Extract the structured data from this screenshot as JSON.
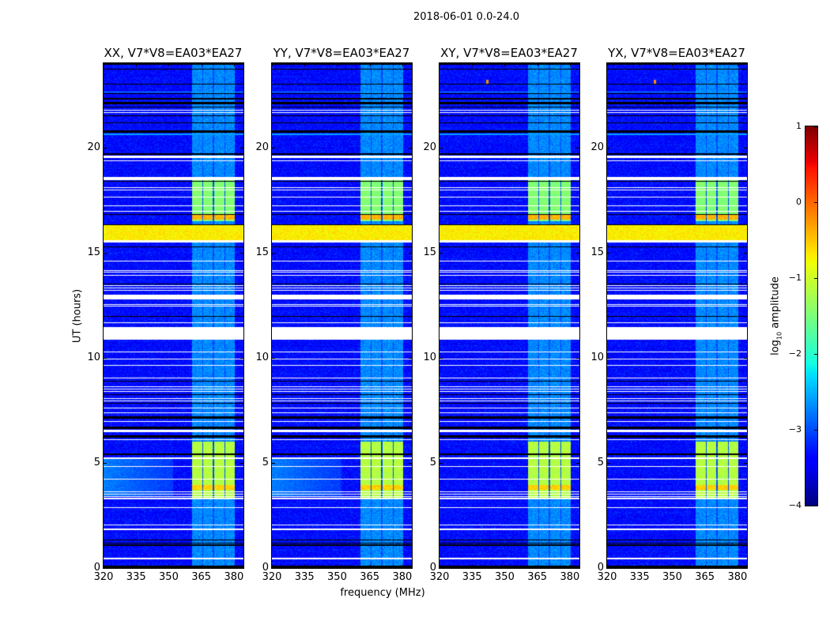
{
  "chart_data": {
    "type": "heatmap",
    "title": "2018-06-01 0.0-24.0",
    "xlabel": "frequency (MHz)",
    "ylabel": "UT (hours)",
    "xlim": [
      320,
      384.4
    ],
    "ylim": [
      0,
      24
    ],
    "xticks": [
      "320",
      "335",
      "350",
      "365",
      "380"
    ],
    "xtick_values": [
      320,
      335,
      350,
      365,
      380
    ],
    "yticks": [
      "0",
      "5",
      "10",
      "15",
      "20"
    ],
    "ytick_values": [
      0,
      5,
      10,
      15,
      20
    ],
    "colormap": "jet",
    "colorbar": {
      "label_main": "log",
      "label_sub": "10",
      "label_rest": " amplitude",
      "range": [
        -4,
        1
      ],
      "ticks": [
        "1",
        "0",
        "−1",
        "−2",
        "−3",
        "−4"
      ],
      "tick_values": [
        1,
        0,
        -1,
        -2,
        -3,
        -4
      ]
    },
    "panels": [
      {
        "title": "XX, V7*V8=EA03*EA27",
        "low_freq_haze": true,
        "spur": false
      },
      {
        "title": "YY, V7*V8=EA03*EA27",
        "low_freq_haze": true,
        "spur": false
      },
      {
        "title": "XY, V7*V8=EA03*EA27",
        "low_freq_haze": false,
        "spur": true
      },
      {
        "title": "YX, V7*V8=EA03*EA27",
        "low_freq_haze": false,
        "spur": true
      }
    ],
    "background_log_amplitude": -3.35,
    "subbands_mhz": [
      [
        360.8,
        365.3
      ],
      [
        365.9,
        370.3
      ],
      [
        370.9,
        375.5
      ],
      [
        376.0,
        380.4
      ]
    ],
    "subband_base_log_amplitude": -2.7,
    "rfi_events": [
      {
        "hours": [
          15.6,
          16.3
        ],
        "freq": "all",
        "log_amplitude": -0.7
      },
      {
        "hours": [
          16.5,
          18.6
        ],
        "freq": "subbands",
        "log_amplitude": -1.45
      },
      {
        "hours": [
          16.55,
          16.8
        ],
        "freq": "subbands",
        "log_amplitude": -0.4
      },
      {
        "hours": [
          3.3,
          6.0
        ],
        "freq": "subbands",
        "log_amplitude": -1.15
      },
      {
        "hours": [
          3.7,
          3.95
        ],
        "freq": "subbands",
        "log_amplitude": -0.55
      }
    ],
    "flagged_white_hours": [
      [
        21.8,
        21.76
      ],
      [
        21.67,
        21.63
      ],
      [
        19.62,
        19.48
      ],
      [
        19.38,
        19.34
      ],
      [
        18.6,
        18.44
      ],
      [
        18.09,
        18.05
      ],
      [
        17.99,
        17.95
      ],
      [
        17.66,
        17.62
      ],
      [
        17.23,
        17.19
      ],
      [
        16.99,
        16.95
      ],
      [
        15.6,
        15.47
      ],
      [
        14.62,
        14.58
      ],
      [
        14.17,
        14.13
      ],
      [
        14.07,
        14.03
      ],
      [
        13.95,
        13.91
      ],
      [
        13.45,
        13.41
      ],
      [
        13.35,
        13.31
      ],
      [
        13.23,
        13.19
      ],
      [
        13.0,
        12.78
      ],
      [
        12.55,
        12.51
      ],
      [
        12.47,
        12.43
      ],
      [
        11.69,
        11.65
      ],
      [
        11.47,
        10.84
      ],
      [
        10.3,
        10.26
      ],
      [
        9.95,
        9.91
      ],
      [
        9.64,
        9.6
      ],
      [
        9.04,
        9.0
      ],
      [
        8.63,
        8.59
      ],
      [
        8.52,
        8.48
      ],
      [
        8.4,
        8.36
      ],
      [
        8.09,
        8.05
      ],
      [
        7.96,
        7.92
      ],
      [
        7.62,
        7.58
      ],
      [
        7.4,
        7.36
      ],
      [
        6.98,
        6.94
      ],
      [
        6.57,
        6.47
      ],
      [
        6.14,
        6.1
      ],
      [
        5.24,
        5.2
      ],
      [
        4.86,
        4.82
      ],
      [
        4.26,
        4.22
      ],
      [
        3.63,
        3.59
      ],
      [
        3.53,
        3.49
      ],
      [
        3.43,
        3.39
      ],
      [
        3.33,
        3.28
      ],
      [
        2.89,
        2.85
      ],
      [
        2.07,
        2.03
      ],
      [
        1.86,
        1.82
      ],
      [
        0.47,
        0.43
      ]
    ],
    "flagged_black_hours": [
      [
        24.0,
        23.92
      ],
      [
        23.75,
        23.71
      ],
      [
        23.02,
        22.98
      ],
      [
        22.56,
        22.52
      ],
      [
        22.33,
        22.29
      ],
      [
        22.15,
        22.03
      ],
      [
        21.95,
        21.91
      ],
      [
        21.52,
        21.48
      ],
      [
        21.18,
        21.14
      ],
      [
        20.8,
        20.7
      ],
      [
        19.7,
        19.66
      ],
      [
        18.41,
        18.37
      ],
      [
        16.83,
        16.79
      ],
      [
        16.35,
        16.31
      ],
      [
        15.3,
        15.26
      ],
      [
        13.52,
        13.48
      ],
      [
        11.99,
        11.95
      ],
      [
        8.92,
        8.88
      ],
      [
        8.27,
        8.23
      ],
      [
        7.86,
        7.82
      ],
      [
        7.22,
        7.09
      ],
      [
        6.74,
        6.62
      ],
      [
        6.31,
        6.19
      ],
      [
        5.44,
        5.37
      ],
      [
        1.35,
        1.31
      ],
      [
        1.2,
        1.16
      ],
      [
        1.11,
        1.07
      ],
      [
        0.12,
        0.0
      ]
    ],
    "elevated_rows_hours": [
      [
        22.66,
        22.6
      ],
      [
        20.64,
        20.58
      ]
    ]
  }
}
